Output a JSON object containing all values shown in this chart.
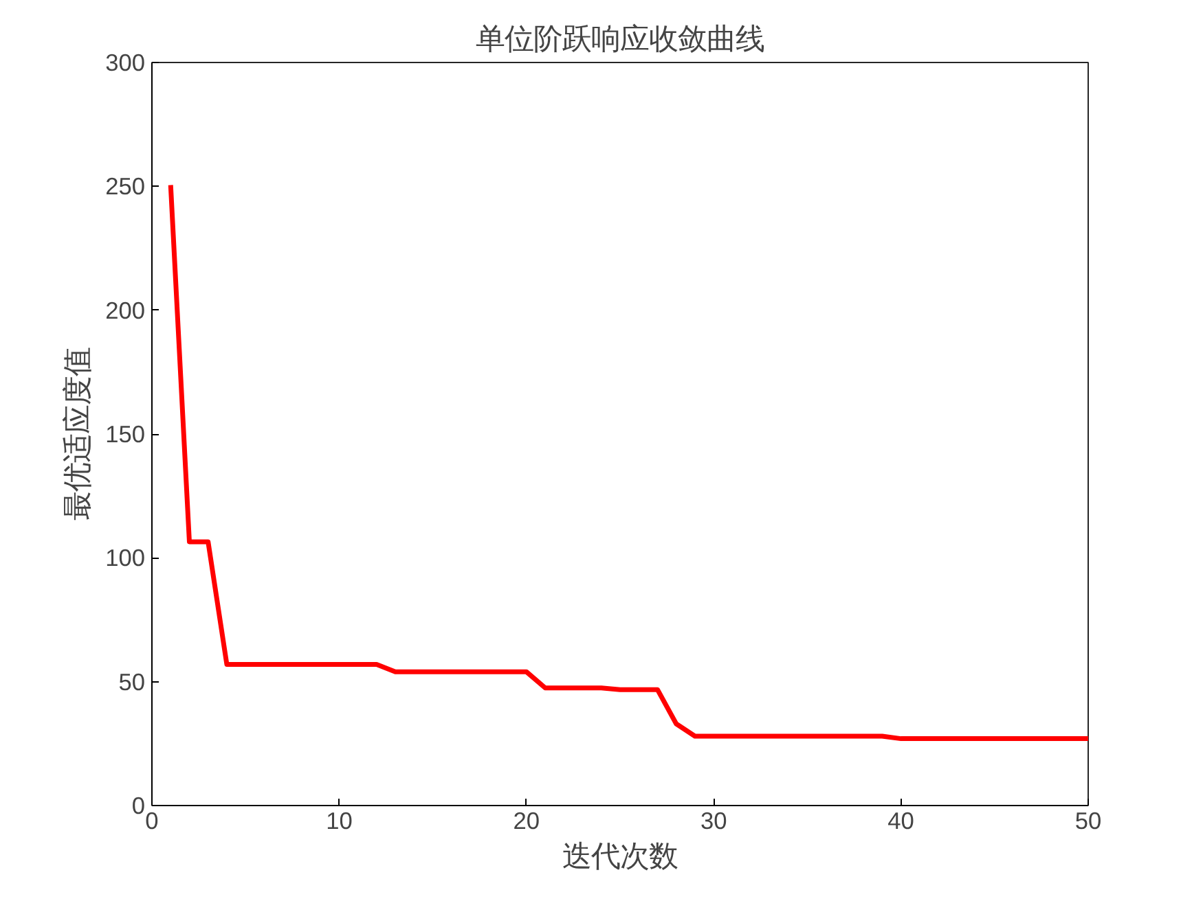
{
  "chart_data": {
    "type": "line",
    "title": "单位阶跃响应收敛曲线",
    "xlabel": "迭代次数",
    "ylabel": "最优适应度值",
    "x": [
      1,
      2,
      3,
      4,
      5,
      6,
      7,
      8,
      9,
      10,
      11,
      12,
      13,
      14,
      15,
      16,
      17,
      18,
      19,
      20,
      21,
      22,
      23,
      24,
      25,
      26,
      27,
      28,
      29,
      30,
      31,
      32,
      33,
      34,
      35,
      36,
      37,
      38,
      39,
      40,
      41,
      42,
      43,
      44,
      45,
      46,
      47,
      48,
      49,
      50
    ],
    "series": [
      {
        "color": "#ff0000",
        "values": [
          250.5,
          106.5,
          106.5,
          57,
          57,
          57,
          57,
          57,
          57,
          57,
          57,
          57,
          54,
          54,
          54,
          54,
          54,
          54,
          54,
          54,
          47.5,
          47.5,
          47.5,
          47.5,
          46.8,
          46.8,
          46.8,
          33,
          28,
          28,
          28,
          28,
          28,
          28,
          28,
          28,
          28,
          28,
          28,
          27,
          27,
          27,
          27,
          27,
          27,
          27,
          27,
          27,
          27,
          27
        ]
      }
    ],
    "xlim": [
      0,
      50
    ],
    "ylim": [
      0,
      300
    ],
    "xticks": [
      0,
      10,
      20,
      30,
      40,
      50
    ],
    "yticks": [
      0,
      50,
      100,
      150,
      200,
      250,
      300
    ],
    "grid": false,
    "marker": "none",
    "line_style": "solid"
  }
}
